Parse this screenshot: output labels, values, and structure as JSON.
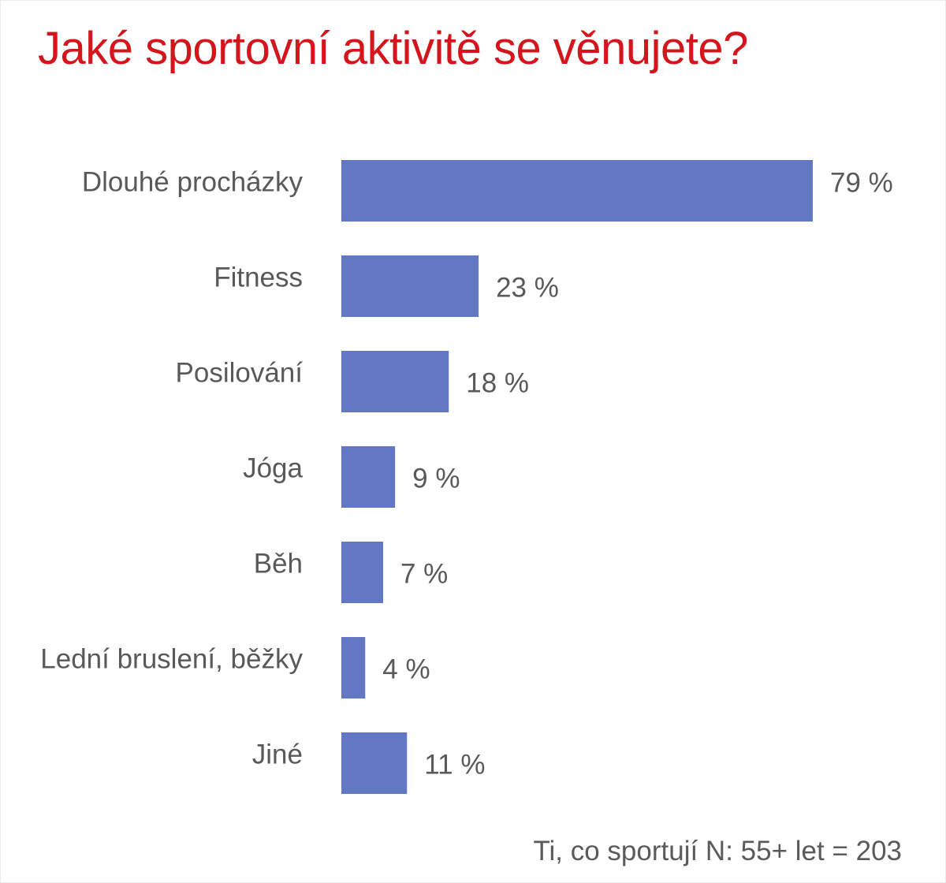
{
  "chart_data": {
    "type": "bar",
    "orientation": "horizontal",
    "title": "Jaké sportovní aktivitě se věnujete?",
    "categories": [
      "Dlouhé procházky",
      "Fitness",
      "Posilování",
      "Jóga",
      "Běh",
      "Lední bruslení, běžky",
      "Jiné"
    ],
    "values": [
      79,
      23,
      18,
      9,
      7,
      4,
      11
    ],
    "value_labels": [
      "79 %",
      "23 %",
      "18 %",
      "9 %",
      "7 %",
      "4 %",
      "11 %"
    ],
    "unit": "%",
    "xlim": [
      0,
      79
    ],
    "grid": false,
    "legend": "none",
    "bar_color": "#6278c4",
    "title_color": "#d4151c",
    "note": "Ti, co sportují N: 55+ let = 203"
  }
}
